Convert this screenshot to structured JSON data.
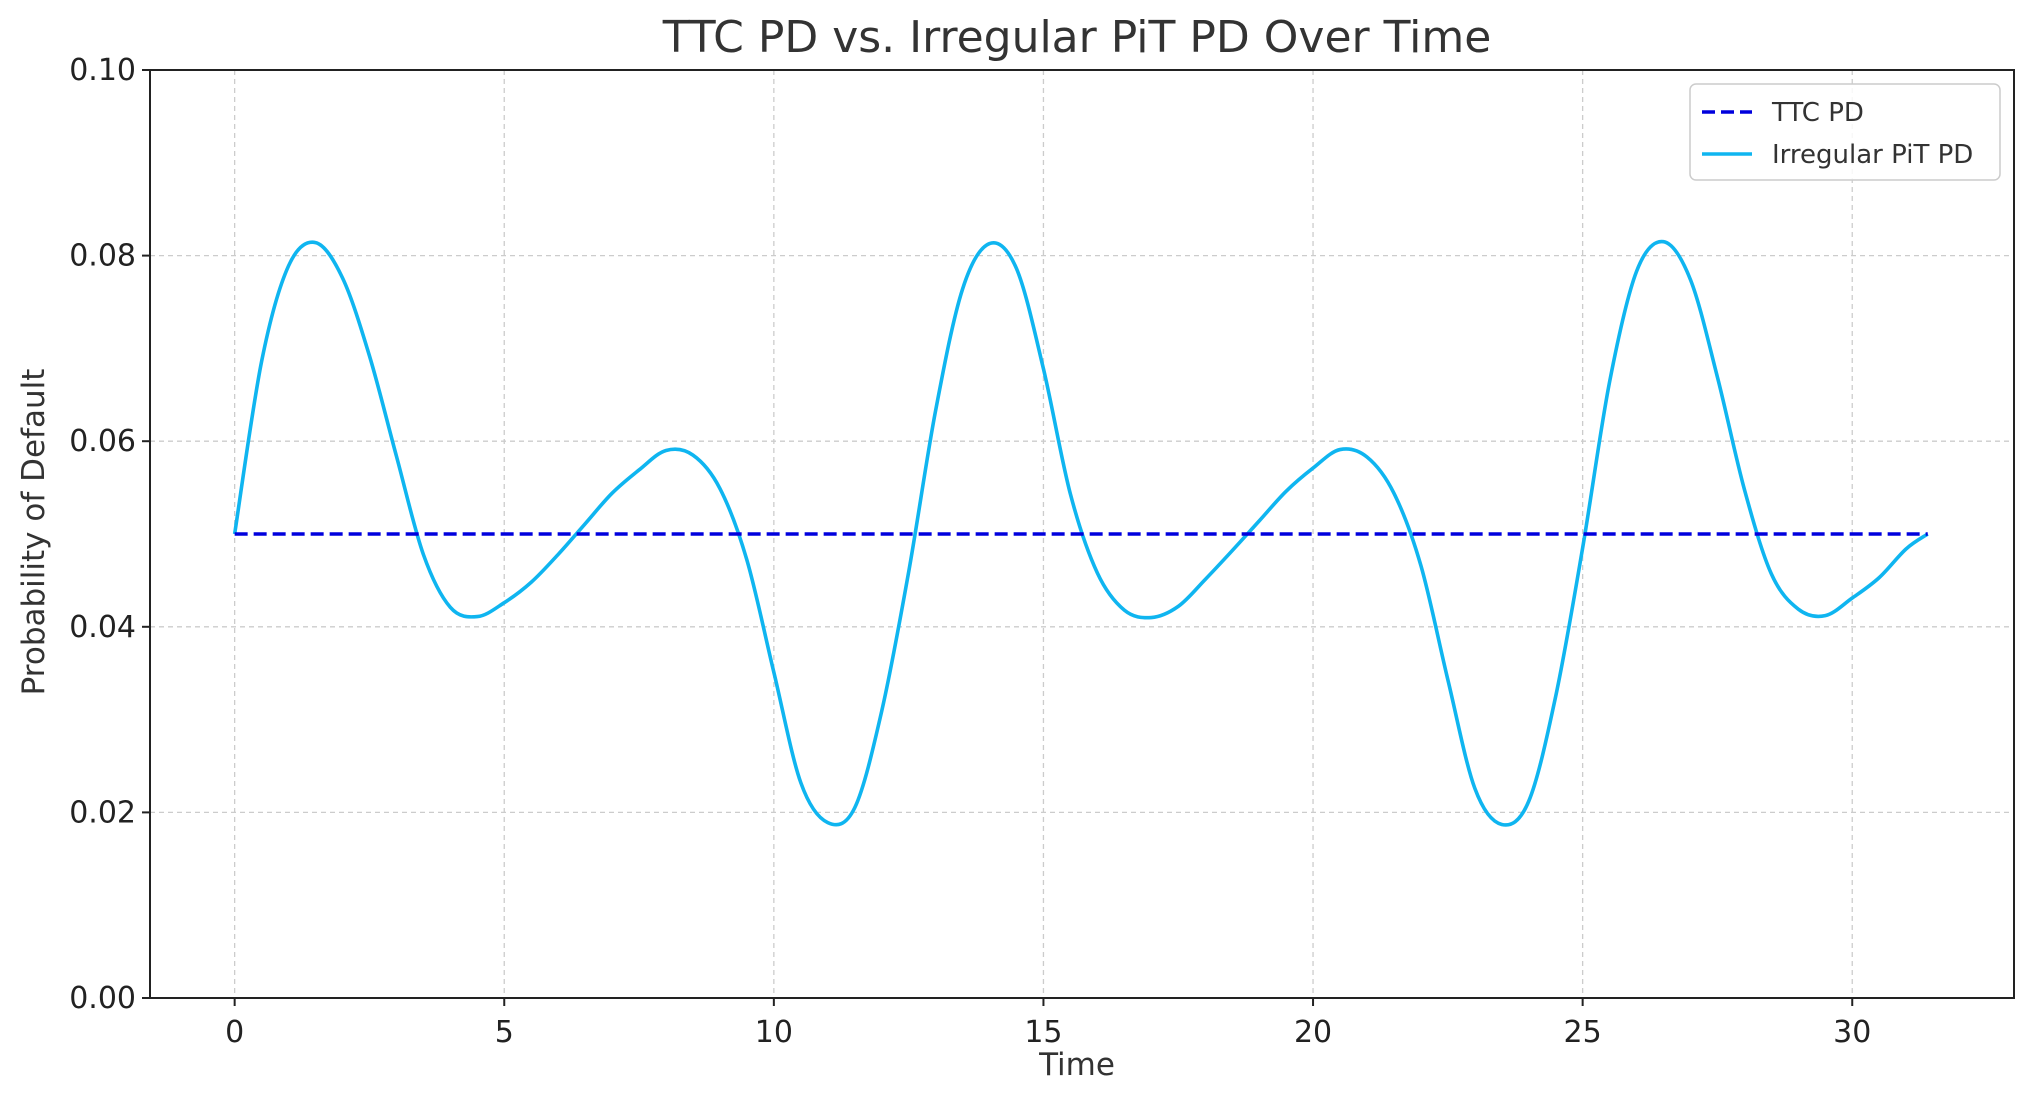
{
  "chart_data": {
    "type": "line",
    "title": "TTC PD vs. Irregular PiT PD Over Time",
    "xlabel": "Time",
    "ylabel": "Probability of Default",
    "xlim": [
      -1.57,
      33.0
    ],
    "ylim": [
      0.0,
      0.1
    ],
    "xticks": [
      0,
      5,
      10,
      15,
      20,
      25,
      30
    ],
    "yticks": [
      0.0,
      0.02,
      0.04,
      0.06,
      0.08,
      0.1
    ],
    "ytick_labels": [
      "0.00",
      "0.02",
      "0.04",
      "0.06",
      "0.08",
      "0.10"
    ],
    "grid": true,
    "legend_position": "top-right",
    "series": [
      {
        "name": "TTC PD",
        "style": "dashed",
        "color": "#0000dd",
        "x": [
          0,
          31.4
        ],
        "y": [
          0.05,
          0.05
        ]
      },
      {
        "name": "Irregular PiT PD",
        "style": "solid",
        "color": "#0fb5f0",
        "x": [
          0,
          0.5,
          1.0,
          1.5,
          2.0,
          2.5,
          3.0,
          3.5,
          4.0,
          4.5,
          5.0,
          5.5,
          6.0,
          6.5,
          7.0,
          7.5,
          8.0,
          8.5,
          9.0,
          9.5,
          10.0,
          10.5,
          11.0,
          11.5,
          12.0,
          12.5,
          13.0,
          13.5,
          14.0,
          14.5,
          15.0,
          15.5,
          16.0,
          16.5,
          17.0,
          17.5,
          18.0,
          18.5,
          19.0,
          19.5,
          20.0,
          20.5,
          21.0,
          21.5,
          22.0,
          22.5,
          23.0,
          23.5,
          24.0,
          24.5,
          25.0,
          25.5,
          26.0,
          26.5,
          27.0,
          27.5,
          28.0,
          28.5,
          29.0,
          29.5,
          30.0,
          30.5,
          31.0,
          31.4
        ],
        "y": [
          0.05,
          0.0686,
          0.0789,
          0.0814,
          0.0776,
          0.0692,
          0.0584,
          0.0478,
          0.0421,
          0.0411,
          0.0426,
          0.0448,
          0.0478,
          0.0511,
          0.0544,
          0.0569,
          0.059,
          0.0585,
          0.0549,
          0.0472,
          0.0351,
          0.0232,
          0.0189,
          0.0205,
          0.0309,
          0.0459,
          0.0633,
          0.0764,
          0.0813,
          0.0786,
          0.0678,
          0.0543,
          0.0458,
          0.0418,
          0.041,
          0.0422,
          0.0451,
          0.0482,
          0.0514,
          0.0546,
          0.0571,
          0.0591,
          0.0583,
          0.0544,
          0.0466,
          0.0343,
          0.0226,
          0.0187,
          0.0212,
          0.0325,
          0.0485,
          0.0664,
          0.0783,
          0.0815,
          0.0774,
          0.0669,
          0.0548,
          0.0457,
          0.0419,
          0.0412,
          0.0431,
          0.0453,
          0.0484,
          0.05
        ]
      }
    ]
  }
}
